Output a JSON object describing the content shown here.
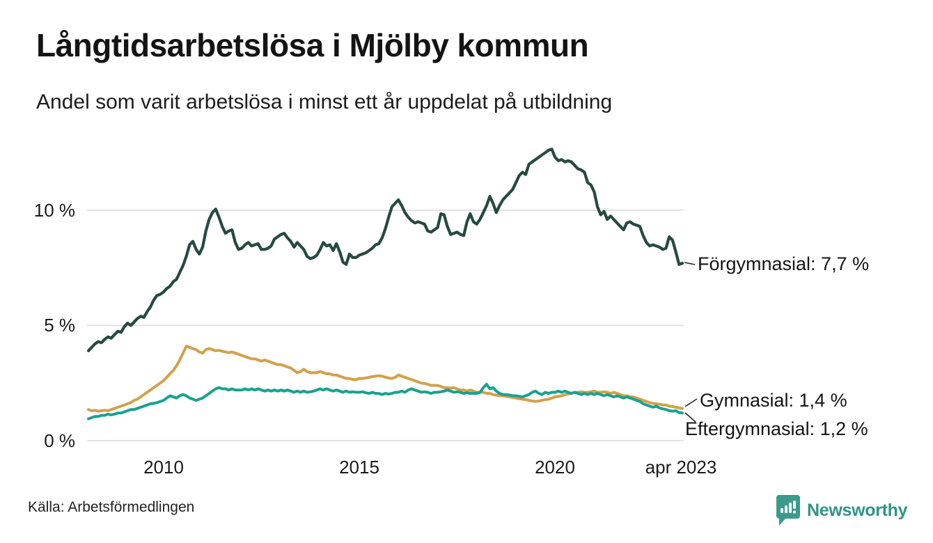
{
  "header": {
    "title": "Långtidsarbetslösa i Mjölby kommun",
    "subtitle": "Andel som varit arbetslösa i minst ett år uppdelat på utbildning"
  },
  "footer": {
    "source": "Källa: Arbetsförmedlingen",
    "brand": "Newsworthy"
  },
  "colors": {
    "forgymnasial": "#254a41",
    "gymnasial": "#d3a04a",
    "eftergymnasial": "#18a28e",
    "grid": "#e2e2e2",
    "brand_teal": "#2f9486",
    "connector": "#222222"
  },
  "chart_data": {
    "type": "line",
    "title": "Långtidsarbetslösa i Mjölby kommun",
    "subtitle": "Andel som varit arbetslösa i minst ett år uppdelat på utbildning",
    "xlabel": "",
    "ylabel": "",
    "x_unit": "month",
    "x_start": "2008-02",
    "x_end": "2023-04",
    "ylim": [
      0,
      13.2
    ],
    "grid": true,
    "legend_position": "right-end-labels",
    "y_ticks": [
      {
        "value": 10,
        "label": "10 %"
      },
      {
        "value": 5,
        "label": "5 %"
      },
      {
        "value": 0,
        "label": "0 %"
      }
    ],
    "x_ticks": [
      {
        "value": 2010,
        "label": "2010"
      },
      {
        "value": 2015,
        "label": "2015"
      },
      {
        "value": 2020,
        "label": "2020"
      },
      {
        "value": 2023.25,
        "label": "apr 2023"
      }
    ],
    "series": [
      {
        "name": "Förgymnasial",
        "end_label": "Förgymnasial: 7,7 %",
        "last_value": 7.7,
        "color": "#254a41",
        "values": [
          3.9,
          4.05,
          4.2,
          4.3,
          4.25,
          4.4,
          4.5,
          4.45,
          4.6,
          4.75,
          4.7,
          4.95,
          5.1,
          5.0,
          5.15,
          5.3,
          5.4,
          5.35,
          5.6,
          5.8,
          6.1,
          6.3,
          6.35,
          6.45,
          6.6,
          6.7,
          6.9,
          7.0,
          7.3,
          7.6,
          8.0,
          8.5,
          8.65,
          8.3,
          8.1,
          8.4,
          9.1,
          9.6,
          9.9,
          10.05,
          9.7,
          9.3,
          9.0,
          9.1,
          9.15,
          8.6,
          8.3,
          8.35,
          8.5,
          8.6,
          8.45,
          8.5,
          8.55,
          8.3,
          8.3,
          8.35,
          8.45,
          8.75,
          8.85,
          8.95,
          9.0,
          8.8,
          8.65,
          8.4,
          8.6,
          8.45,
          8.3,
          8.0,
          7.9,
          7.95,
          8.05,
          8.3,
          8.6,
          8.45,
          8.5,
          8.25,
          8.55,
          8.2,
          7.75,
          7.65,
          8.1,
          7.95,
          7.95,
          8.05,
          8.1,
          8.15,
          8.25,
          8.35,
          8.5,
          8.55,
          8.8,
          9.2,
          9.7,
          10.15,
          10.3,
          10.45,
          10.2,
          9.9,
          9.7,
          9.55,
          9.45,
          9.5,
          9.45,
          9.4,
          9.1,
          9.05,
          9.15,
          9.25,
          9.85,
          9.8,
          9.3,
          8.95,
          9.0,
          9.05,
          8.95,
          8.9,
          9.5,
          9.85,
          9.5,
          9.4,
          9.6,
          9.9,
          10.2,
          10.6,
          10.3,
          9.9,
          10.2,
          10.45,
          10.6,
          10.75,
          10.9,
          11.2,
          11.5,
          11.65,
          11.55,
          12.0,
          12.1,
          12.2,
          12.3,
          12.4,
          12.5,
          12.6,
          12.65,
          12.3,
          12.15,
          12.2,
          12.1,
          12.15,
          12.1,
          11.95,
          11.8,
          11.75,
          11.65,
          11.2,
          11.1,
          10.8,
          10.15,
          9.8,
          9.95,
          9.6,
          9.75,
          9.6,
          9.45,
          9.3,
          9.15,
          9.45,
          9.5,
          9.4,
          9.35,
          9.3,
          8.9,
          8.6,
          8.45,
          8.5,
          8.45,
          8.4,
          8.3,
          8.35,
          8.85,
          8.7,
          8.2,
          7.65,
          7.7
        ]
      },
      {
        "name": "Gymnasial",
        "end_label": "Gymnasial: 1,4 %",
        "last_value": 1.4,
        "color": "#d3a04a",
        "values": [
          1.35,
          1.3,
          1.32,
          1.28,
          1.3,
          1.32,
          1.3,
          1.35,
          1.4,
          1.45,
          1.5,
          1.55,
          1.6,
          1.65,
          1.75,
          1.8,
          1.9,
          2.0,
          2.1,
          2.2,
          2.3,
          2.4,
          2.5,
          2.6,
          2.75,
          2.9,
          3.05,
          3.25,
          3.5,
          3.8,
          4.1,
          4.05,
          4.0,
          3.95,
          3.85,
          3.8,
          3.95,
          4.0,
          3.95,
          3.9,
          3.92,
          3.88,
          3.85,
          3.82,
          3.85,
          3.8,
          3.75,
          3.7,
          3.65,
          3.6,
          3.55,
          3.55,
          3.5,
          3.45,
          3.5,
          3.45,
          3.4,
          3.35,
          3.3,
          3.3,
          3.25,
          3.2,
          3.15,
          3.05,
          2.95,
          3.0,
          3.1,
          3.0,
          2.95,
          2.95,
          2.95,
          3.0,
          2.95,
          2.9,
          2.9,
          2.85,
          2.85,
          2.8,
          2.75,
          2.7,
          2.7,
          2.65,
          2.65,
          2.7,
          2.7,
          2.72,
          2.75,
          2.78,
          2.8,
          2.82,
          2.8,
          2.75,
          2.72,
          2.7,
          2.75,
          2.85,
          2.8,
          2.75,
          2.7,
          2.65,
          2.6,
          2.55,
          2.5,
          2.48,
          2.45,
          2.4,
          2.4,
          2.4,
          2.35,
          2.3,
          2.3,
          2.28,
          2.3,
          2.25,
          2.2,
          2.2,
          2.15,
          2.2,
          2.15,
          2.1,
          2.1,
          2.1,
          2.05,
          2.05,
          2.0,
          1.98,
          1.95,
          1.95,
          1.92,
          1.9,
          1.88,
          1.85,
          1.82,
          1.8,
          1.78,
          1.75,
          1.72,
          1.7,
          1.72,
          1.75,
          1.78,
          1.8,
          1.85,
          1.9,
          1.92,
          1.95,
          2.0,
          2.02,
          2.05,
          2.1,
          2.1,
          2.12,
          2.1,
          2.1,
          2.12,
          2.15,
          2.1,
          2.1,
          2.12,
          2.1,
          2.05,
          2.1,
          2.05,
          2.0,
          1.95,
          1.95,
          1.9,
          1.9,
          1.85,
          1.8,
          1.75,
          1.7,
          1.65,
          1.62,
          1.6,
          1.58,
          1.55,
          1.55,
          1.5,
          1.48,
          1.45,
          1.42,
          1.4
        ]
      },
      {
        "name": "Eftergymnasial",
        "end_label": "Eftergymnasial: 1,2 %",
        "last_value": 1.2,
        "color": "#18a28e",
        "values": [
          0.95,
          1.0,
          1.05,
          1.05,
          1.1,
          1.1,
          1.15,
          1.12,
          1.15,
          1.2,
          1.2,
          1.25,
          1.3,
          1.35,
          1.35,
          1.4,
          1.45,
          1.5,
          1.55,
          1.6,
          1.62,
          1.65,
          1.7,
          1.75,
          1.85,
          1.95,
          1.9,
          1.85,
          1.95,
          2.0,
          1.95,
          1.85,
          1.8,
          1.75,
          1.8,
          1.85,
          1.95,
          2.05,
          2.15,
          2.25,
          2.3,
          2.25,
          2.25,
          2.2,
          2.25,
          2.2,
          2.2,
          2.2,
          2.25,
          2.2,
          2.25,
          2.2,
          2.25,
          2.2,
          2.15,
          2.2,
          2.15,
          2.2,
          2.15,
          2.2,
          2.15,
          2.2,
          2.15,
          2.1,
          2.15,
          2.1,
          2.15,
          2.1,
          2.12,
          2.15,
          2.2,
          2.25,
          2.2,
          2.25,
          2.2,
          2.15,
          2.2,
          2.15,
          2.1,
          2.15,
          2.1,
          2.12,
          2.1,
          2.1,
          2.12,
          2.08,
          2.05,
          2.1,
          2.05,
          2.05,
          2.0,
          2.05,
          2.02,
          2.05,
          2.1,
          2.1,
          2.15,
          2.1,
          2.2,
          2.25,
          2.2,
          2.15,
          2.1,
          2.12,
          2.1,
          2.05,
          2.1,
          2.1,
          2.12,
          2.15,
          2.2,
          2.15,
          2.1,
          2.12,
          2.1,
          2.05,
          2.08,
          2.05,
          2.05,
          2.05,
          2.1,
          2.3,
          2.45,
          2.25,
          2.3,
          2.15,
          2.05,
          2.0,
          2.0,
          1.98,
          1.95,
          1.95,
          1.92,
          1.9,
          1.95,
          2.0,
          2.1,
          2.15,
          2.05,
          2.0,
          2.1,
          2.05,
          2.1,
          2.1,
          2.15,
          2.1,
          2.15,
          2.1,
          2.05,
          2.1,
          2.05,
          2.0,
          2.05,
          2.0,
          2.05,
          2.0,
          2.05,
          2.0,
          1.95,
          2.0,
          1.95,
          1.9,
          1.95,
          1.9,
          1.85,
          1.9,
          1.85,
          1.8,
          1.75,
          1.7,
          1.6,
          1.55,
          1.5,
          1.45,
          1.5,
          1.42,
          1.38,
          1.35,
          1.3,
          1.28,
          1.3,
          1.22,
          1.2
        ]
      }
    ]
  }
}
